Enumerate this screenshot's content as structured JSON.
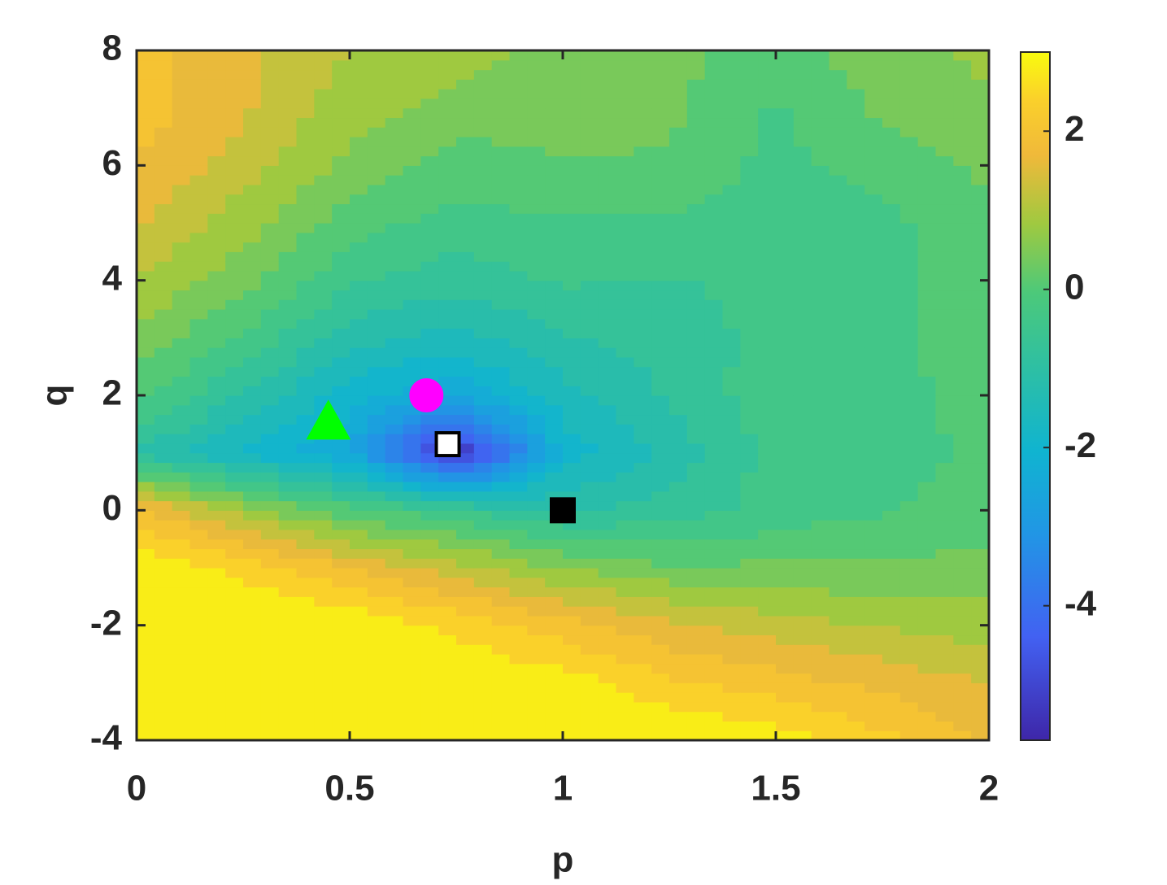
{
  "chart_data": {
    "type": "contour",
    "x_label": "p",
    "y_label": "q",
    "x": [
      0,
      0.25,
      0.5,
      0.75,
      1,
      1.25,
      1.5,
      1.75,
      2
    ],
    "y": [
      -4,
      -3,
      -2,
      -1,
      0,
      1,
      2,
      3,
      4,
      5,
      6,
      7,
      8
    ],
    "z": [
      [
        3,
        3,
        3,
        3,
        3,
        3,
        2.8,
        2.3,
        1.8
      ],
      [
        3,
        3,
        3,
        3,
        2.8,
        2.3,
        2.0,
        1.7,
        1.4
      ],
      [
        3,
        3,
        3,
        2.5,
        2.0,
        1.5,
        1.2,
        1.0,
        0.8
      ],
      [
        3,
        2.5,
        1.8,
        1.2,
        0.6,
        0.3,
        0.3,
        0.3,
        0.4
      ],
      [
        2.0,
        0.8,
        0.0,
        -0.5,
        -1.0,
        -0.8,
        -0.4,
        -0.2,
        0.0
      ],
      [
        -1.0,
        -1.8,
        -2.5,
        -5.5,
        -2.0,
        -1.2,
        -0.4,
        -0.3,
        -0.1
      ],
      [
        0,
        -1.0,
        -2.0,
        -2.5,
        -1.5,
        -0.9,
        -0.3,
        -0.3,
        0.0
      ],
      [
        0.5,
        -0.2,
        -1.2,
        -1.5,
        -1.0,
        -0.8,
        -0.4,
        -0.3,
        0.1
      ],
      [
        1.0,
        0.4,
        -0.5,
        -0.8,
        -0.5,
        -0.6,
        -0.4,
        -0.3,
        0.2
      ],
      [
        1.5,
        0.8,
        0.0,
        -0.3,
        -0.2,
        -0.2,
        -0.5,
        -0.3,
        0.2
      ],
      [
        1.8,
        1.2,
        0.5,
        0.0,
        0.2,
        0.2,
        -0.3,
        0.0,
        0.3
      ],
      [
        2.0,
        1.5,
        0.8,
        0.5,
        0.4,
        0.3,
        -0.2,
        0.3,
        0.6
      ],
      [
        2.0,
        1.5,
        1.0,
        0.8,
        0.5,
        0.4,
        0.0,
        0.5,
        0.7
      ]
    ],
    "xlim": [
      0,
      2
    ],
    "xticks": [
      0,
      0.5,
      1,
      1.5,
      2
    ],
    "ylim": [
      -4,
      8
    ],
    "yticks": [
      -4,
      -2,
      0,
      2,
      4,
      6,
      8
    ],
    "clim": [
      -5.7,
      3
    ],
    "cticks": [
      -4,
      -2,
      0,
      2
    ],
    "colormap": "parula",
    "levels": 22,
    "points": [
      {
        "x": 0.45,
        "y": 1.5,
        "marker": "triangle",
        "color": "#00ff00",
        "edge": "#00ff00"
      },
      {
        "x": 0.68,
        "y": 2.0,
        "marker": "circle",
        "color": "#ff00ff",
        "edge": "#ff00ff"
      },
      {
        "x": 0.73,
        "y": 1.15,
        "marker": "square",
        "color": "#ffffff",
        "edge": "#000000"
      },
      {
        "x": 1.0,
        "y": 0.0,
        "marker": "square",
        "color": "#000000",
        "edge": "#000000"
      }
    ]
  }
}
